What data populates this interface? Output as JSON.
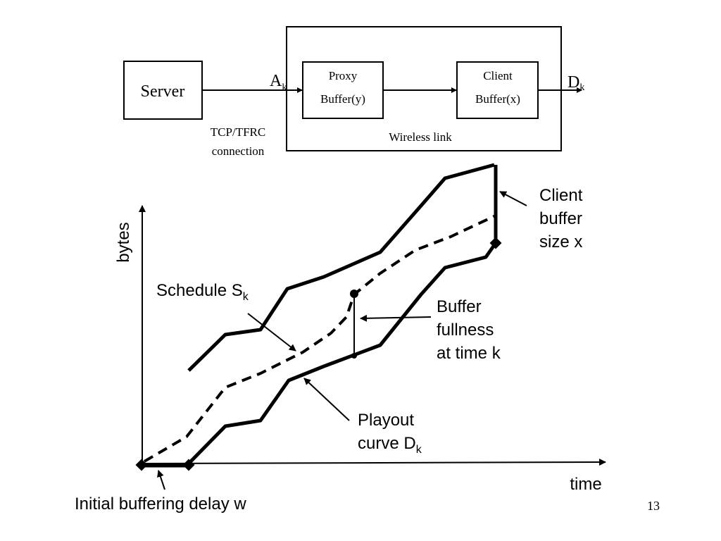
{
  "block_diagram": {
    "server_label": "Server",
    "arrival_label_main": "A",
    "arrival_label_sub": "k",
    "proxy_buffer_line1": "Proxy",
    "proxy_buffer_line2": "Buffer(y)",
    "client_buffer_line1": "Client",
    "client_buffer_line2": "Buffer(x)",
    "departure_label_main": "D",
    "departure_label_sub": "k",
    "connection_line1": "TCP/TFRC",
    "connection_line2": "connection",
    "wireless_label": "Wireless link"
  },
  "graph": {
    "y_axis_label": "bytes",
    "x_axis_label": "time",
    "schedule_label_main": "Schedule S",
    "schedule_label_sub": "k",
    "client_buffer_line1": "Client",
    "client_buffer_line2": "buffer",
    "client_buffer_line3": "size x",
    "fullness_line1": "Buffer",
    "fullness_line2": "fullness",
    "fullness_line3": "at time k",
    "playout_line1": "Playout",
    "playout_line2_main": "curve D",
    "playout_line2_sub": "k",
    "initial_delay_label": "Initial buffering delay w"
  },
  "page_number": "13",
  "colors": {
    "ink": "#000000",
    "background": "#ffffff"
  }
}
